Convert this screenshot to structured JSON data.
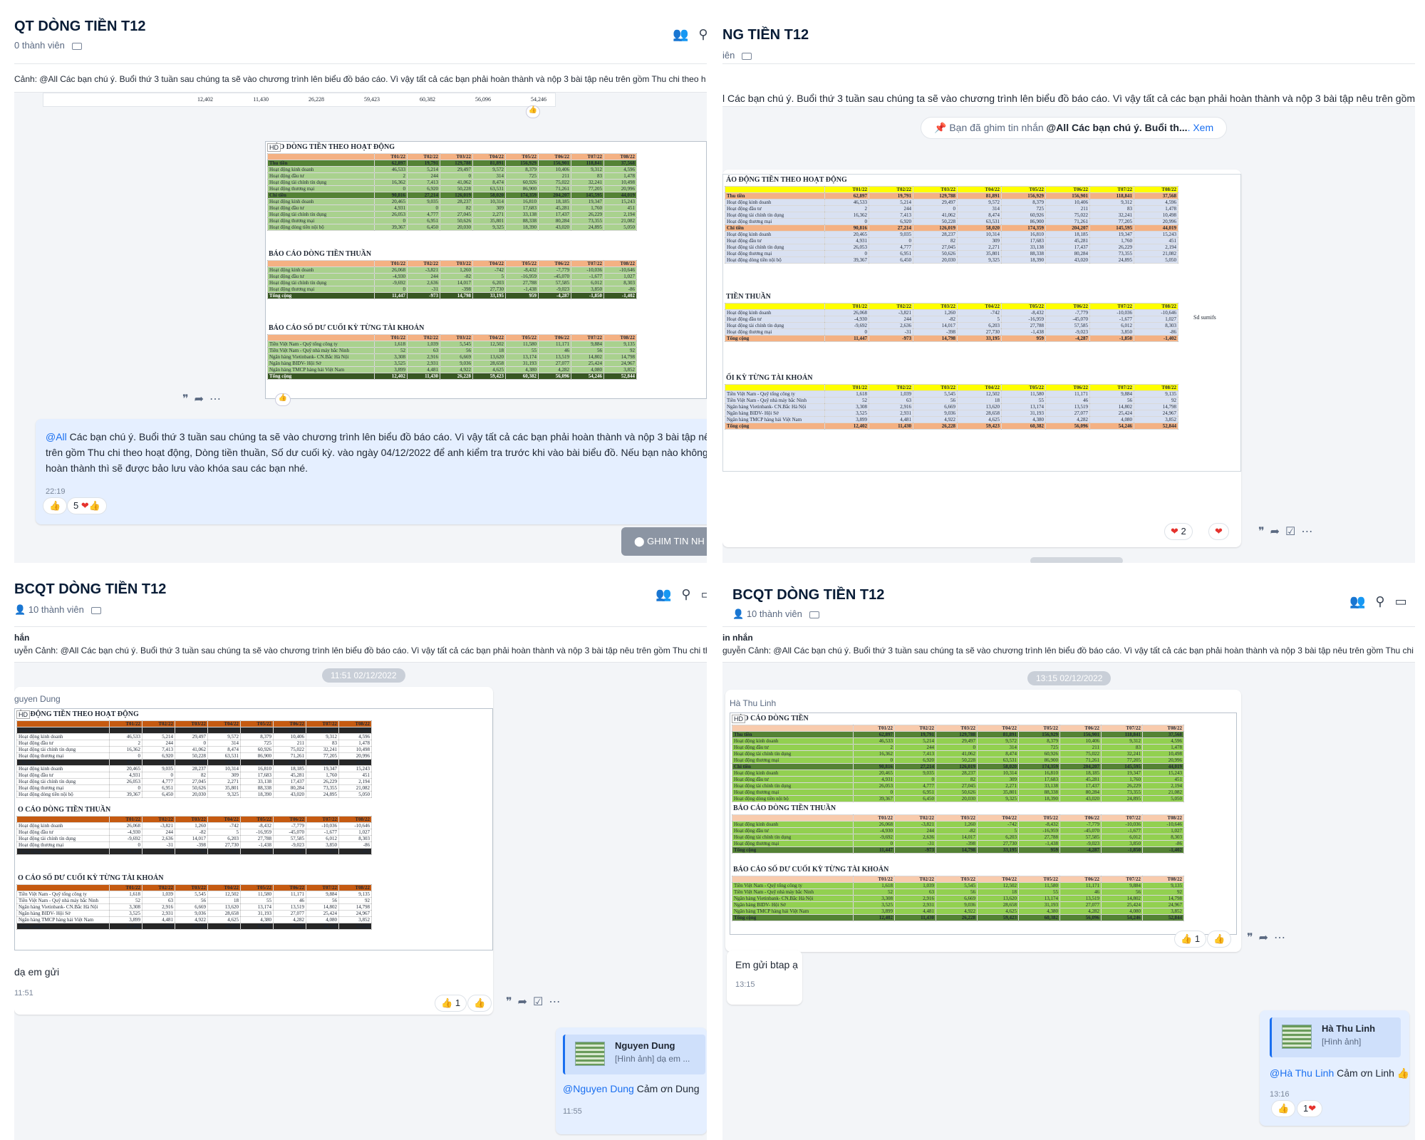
{
  "colors": {
    "accent": "#1a6ff0",
    "sheet_green": "#9ccc65",
    "sheet_orange": "#f4b183",
    "sheet_yellow": "#ffff00",
    "sheet_dark": "#385723",
    "excel_blue": "#d9e1f2"
  },
  "icons": [
    "add-member-icon",
    "search-icon",
    "video-icon",
    "tag-icon",
    "quote-icon",
    "forward-icon",
    "task-icon",
    "more-icon",
    "pin-icon",
    "thumbs-up-icon",
    "heart-icon"
  ],
  "p1": {
    "title": "QT DÒNG TIỀN T12",
    "members": "0 thành viên",
    "pin_text": "Cảnh: @All Các bạn chú ý. Buổi thứ 3 tuần sau chúng ta sẽ vào chương trình lên biểu đồ báo cáo. Vì vậy tất cả các bạn phải hoàn thành và nộp 3 bài tập nêu trên gồm Thu chi theo h",
    "top_row": [
      "12,402",
      "11,430",
      "26,228",
      "59,423",
      "60,382",
      "56,096",
      "54,246"
    ],
    "msg_mention": "@All",
    "msg_text": " Các bạn chú ý. Buổi thứ 3 tuần sau chúng ta sẽ vào chương trình lên biểu đồ báo cáo. Vì vậy tất cả các bạn phải hoàn thành và nộp 3 bài tập nêu trên gồm Thu chi theo hoạt động, Dòng tiền thuần, Số dư cuối kỳ. vào ngày 04/12/2022 để anh kiểm tra trước khi vào bài biểu đồ. Nếu bạn nào không hoàn thành thì sẽ được bảo lưu vào khóa sau các bạn nhé.",
    "msg_time": "22:19",
    "react_count": "5",
    "pin_button": "GHIM TIN NH"
  },
  "p2": {
    "title": "NG TIỀN T12",
    "members": "iên",
    "pin_text": "l Các bạn chú ý. Buổi thứ 3 tuần sau chúng ta sẽ vào chương trình lên biểu đồ báo cáo. Vì vậy tất cả các bạn phải hoàn thành và nộp 3 bài tập nêu trên gồm T",
    "pinned_note_prefix": "Bạn đã ghim tin nhắn ",
    "pinned_note_bold": "@All Các bạn chú ý. Buổi th...",
    "pinned_note_link": ". Xem",
    "react_count": "2",
    "sheet_title1": "ÁO ĐỘNG TIỀN THEO HOẠT ĐỘNG",
    "sheet_title2": "TIỀN THUẦN",
    "sheet_title3": "ỐI KỲ TỪNG TÀI KHOẢN",
    "note": "Sd sumifs"
  },
  "p3": {
    "title": "BCQT DÒNG TIỀN T12",
    "members": "10 thành viên",
    "pin_label": "hắn",
    "pin_text": "uyễn Cảnh: @All Các bạn chú ý. Buổi thứ 3 tuần sau chúng ta sẽ vào chương trình lên biểu đồ báo cáo. Vì vậy tất cả các bạn phải hoàn thành và nộp 3 bài tập nêu trên gồm Thu chi theo hoạt độ",
    "date": "11:51 02/12/2022",
    "sender": "guyen Dung",
    "caption": "dạ em gửi",
    "caption_time": "11:51",
    "react_count": "1",
    "reply_name": "Nguyen Dung",
    "reply_quote": "[Hình ảnh] dạ em ...",
    "reply_mention": "@Nguyen Dung",
    "reply_text": " Cảm ơn Dung",
    "reply_time": "11:55",
    "sheet_title1": "ÁO ĐỘNG TIỀN THEO HOẠT ĐỘNG",
    "sheet_title2": "O CÁO DÒNG TIỀN THUẦN",
    "sheet_title3": "O CÁO SỐ DƯ CUỐI KỲ TỪNG TÀI KHOẢN"
  },
  "p4": {
    "title": "BCQT DÒNG TIỀN T12",
    "members": "10 thành viên",
    "pin_label": "in nhắn",
    "pin_text": "guyễn Cảnh: @All Các bạn chú ý. Buổi thứ 3 tuần sau chúng ta sẽ vào chương trình lên biểu đồ báo cáo. Vì vậy tất cả các bạn phải hoàn thành và nộp 3 bài tập nêu trên gồm Thu chi theo hoạt động",
    "date": "13:15 02/12/2022",
    "sender": "Hà Thu Linh",
    "react_count": "1",
    "caption": "Em gửi btap ạ",
    "caption_time": "13:15",
    "reply_name": "Hà Thu Linh",
    "reply_quote": "[Hình ảnh]",
    "reply_mention": "@Hà Thu Linh",
    "reply_text": " Cảm ơn Linh 👍",
    "reply_time": "13:16",
    "reply_react": "1",
    "sheet_title1": "BÁO CÁO DÒNG TIỀN",
    "sheet_year": "2022",
    "sheet_title2": "BÁO CÁO DÒNG TIỀN THUẦN",
    "sheet_title3": "BÁO CÁO SỐ DƯ CUỐI KỲ TỪNG TÀI KHOẢN"
  },
  "sheet": {
    "hd": "HD",
    "title1": "CÁO DÒNG TIỀN THEO HOẠT ĐỘNG",
    "title2": "BÁO CÁO DÒNG TIỀN THUẦN",
    "title3": "BÁO CÁO SỐ DƯ CUỐI KỲ TỪNG TÀI KHOẢN",
    "months": [
      "T01/22",
      "T02/22",
      "T03/22",
      "T04/22",
      "T05/22",
      "T06/22",
      "T07/22",
      "T08/22"
    ],
    "cf_rows": [
      [
        "Thu tiền",
        "62,897",
        "19,791",
        "129,788",
        "81,891",
        "156,929",
        "156,901",
        "118,841",
        "37,568"
      ],
      [
        "Hoạt động kinh doanh",
        "46,533",
        "5,214",
        "29,497",
        "9,572",
        "8,379",
        "10,406",
        "9,312",
        "4,596"
      ],
      [
        "Hoạt động đầu tư",
        "2",
        "244",
        "0",
        "314",
        "725",
        "211",
        "83",
        "1,478"
      ],
      [
        "Hoạt động tài chính tín dụng",
        "16,362",
        "7,413",
        "41,062",
        "8,474",
        "60,926",
        "75,022",
        "32,241",
        "10,498"
      ],
      [
        "Hoạt động thương mại",
        "0",
        "6,920",
        "50,228",
        "63,531",
        "86,900",
        "71,261",
        "77,205",
        "20,996"
      ],
      [
        "Chi tiền",
        "90,816",
        "27,214",
        "126,019",
        "58,020",
        "174,359",
        "204,207",
        "145,595",
        "44,019"
      ],
      [
        "Hoạt động kinh doanh",
        "20,465",
        "9,035",
        "28,237",
        "10,314",
        "16,810",
        "18,185",
        "19,347",
        "15,243"
      ],
      [
        "Hoạt động đầu tư",
        "4,931",
        "0",
        "82",
        "309",
        "17,683",
        "45,281",
        "1,760",
        "451"
      ],
      [
        "Hoạt động tài chính tín dụng",
        "26,053",
        "4,777",
        "27,045",
        "2,271",
        "33,138",
        "17,437",
        "26,229",
        "2,194"
      ],
      [
        "Hoạt động thương mại",
        "0",
        "6,951",
        "50,626",
        "35,801",
        "88,338",
        "80,284",
        "73,355",
        "21,082"
      ],
      [
        "Hoạt động dòng tiền nội bộ",
        "39,367",
        "6,450",
        "20,030",
        "9,325",
        "18,390",
        "43,020",
        "24,895",
        "5,050"
      ]
    ],
    "net_rows": [
      [
        "Hoạt động kinh doanh",
        "26,068",
        "-3,821",
        "1,260",
        "-742",
        "-8,432",
        "-7,779",
        "-10,036",
        "-10,646"
      ],
      [
        "Hoạt động đầu tư",
        "-4,930",
        "244",
        "-82",
        "5",
        "-16,959",
        "-45,070",
        "-1,677",
        "1,027"
      ],
      [
        "Hoạt động tài chính tín dụng",
        "-9,692",
        "2,636",
        "14,017",
        "6,203",
        "27,788",
        "57,585",
        "6,012",
        "8,303"
      ],
      [
        "Hoạt động thương mại",
        "0",
        "-31",
        "-398",
        "27,730",
        "-1,438",
        "-9,023",
        "3,850",
        "-86"
      ],
      [
        "Tổng cộng",
        "11,447",
        "-973",
        "14,798",
        "33,195",
        "959",
        "-4,287",
        "-1,850",
        "-1,402"
      ]
    ],
    "bal_rows": [
      [
        "Tiền Việt Nam - Quỹ tổng công ty",
        "1,618",
        "1,039",
        "5,545",
        "12,502",
        "11,580",
        "11,171",
        "9,884",
        "9,135"
      ],
      [
        "Tiền Việt Nam - Quỹ nhà máy bắc Ninh",
        "52",
        "63",
        "56",
        "18",
        "55",
        "46",
        "56",
        "92"
      ],
      [
        "Ngân hàng Vietinbank- CN.Bắc Hà Nội",
        "3,308",
        "2,916",
        "6,669",
        "13,620",
        "13,174",
        "13,519",
        "14,802",
        "14,798"
      ],
      [
        "Ngân hàng BIDV- Hội Sở",
        "3,525",
        "2,931",
        "9,036",
        "28,658",
        "31,193",
        "27,077",
        "25,424",
        "24,967"
      ],
      [
        "Ngân hàng TMCP hàng hải Việt Nam",
        "3,899",
        "4,481",
        "4,922",
        "4,625",
        "4,380",
        "4,282",
        "4,080",
        "3,852"
      ],
      [
        "Tổng cộng",
        "12,402",
        "11,430",
        "26,228",
        "59,423",
        "60,382",
        "56,096",
        "54,246",
        "52,844"
      ]
    ]
  }
}
